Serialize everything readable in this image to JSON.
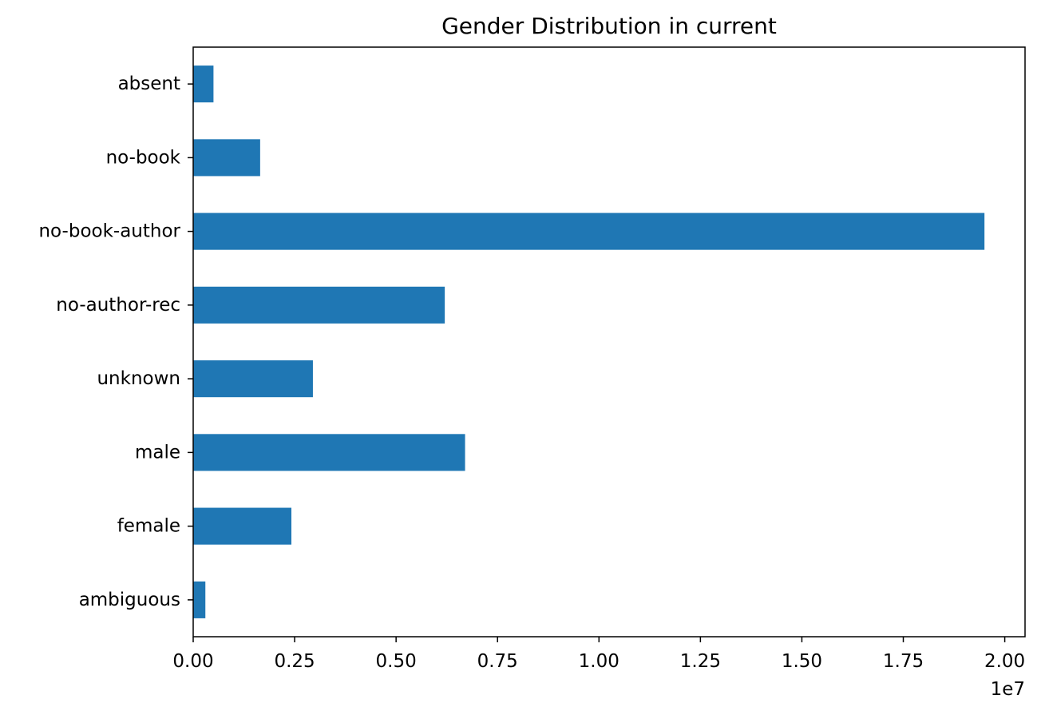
{
  "chart_data": {
    "type": "bar",
    "orientation": "horizontal",
    "title": "Gender Distribution in current",
    "xlabel": "",
    "ylabel": "",
    "axis_multiplier_label": "1e7",
    "categories": [
      "absent",
      "no-book",
      "no-book-author",
      "no-author-rec",
      "unknown",
      "male",
      "female",
      "ambiguous"
    ],
    "values": [
      500000,
      1650000,
      19500000,
      6200000,
      2950000,
      6700000,
      2420000,
      300000
    ],
    "xlim": [
      0,
      20500000
    ],
    "x_ticks": [
      0,
      2500000,
      5000000,
      7500000,
      10000000,
      12500000,
      15000000,
      17500000,
      20000000
    ],
    "x_tick_labels": [
      "0.00",
      "0.25",
      "0.50",
      "0.75",
      "1.00",
      "1.25",
      "1.50",
      "1.75",
      "2.00"
    ],
    "bar_color": "#1f77b4",
    "grid": false,
    "legend": "none"
  }
}
